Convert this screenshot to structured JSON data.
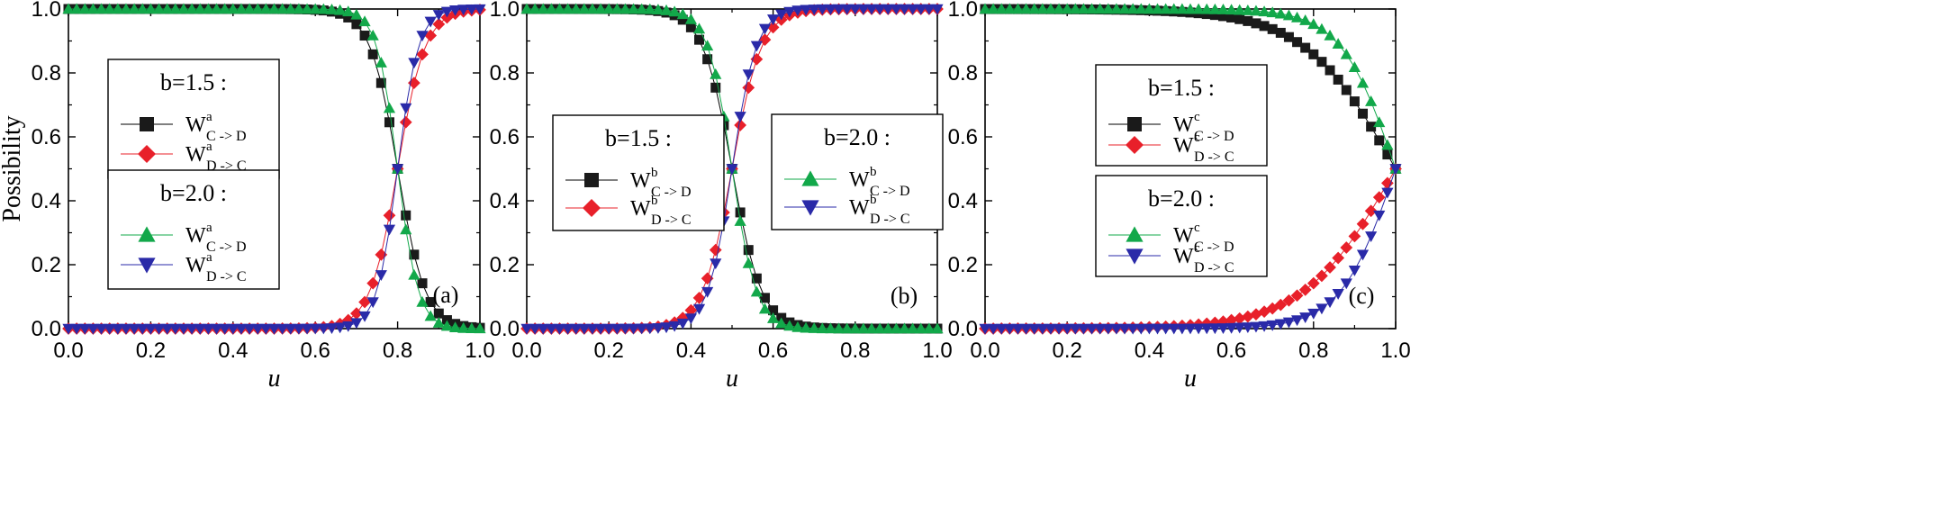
{
  "chart_data": [
    {
      "type": "line",
      "panel_label": "(a)",
      "xlabel": "u",
      "ylabel": "Possibility",
      "xlim": [
        0,
        1
      ],
      "ylim": [
        0,
        1
      ],
      "xticks": [
        "0.0",
        "0.2",
        "0.4",
        "0.6",
        "0.8",
        "1.0"
      ],
      "yticks": [
        "0.0",
        "0.2",
        "0.4",
        "0.6",
        "0.8",
        "1.0"
      ],
      "grid": false,
      "legend": [
        {
          "title": "b=1.5 :",
          "position": "middle-left",
          "entries": [
            {
              "series": 0,
              "main": "W",
              "sup": "a",
              "sub": "C -> D"
            },
            {
              "series": 1,
              "main": "W",
              "sup": "a",
              "sub": "D -> C"
            }
          ]
        },
        {
          "title": "b=2.0 :",
          "position": "lower-left",
          "entries": [
            {
              "series": 2,
              "main": "W",
              "sup": "a",
              "sub": "C -> D"
            },
            {
              "series": 3,
              "main": "W",
              "sup": "a",
              "sub": "D -> C"
            }
          ]
        }
      ],
      "series": [
        {
          "b": 1.5,
          "marker": "square",
          "color": "#1a1a1a",
          "line_color": "#000000",
          "center": 0.8,
          "steep": 30,
          "decreasing": true
        },
        {
          "b": 1.5,
          "marker": "diamond",
          "color": "#e8202a",
          "line_color": "#e8202a",
          "center": 0.8,
          "steep": 30,
          "decreasing": false
        },
        {
          "b": 2.0,
          "marker": "triangle-up",
          "color": "#12a84a",
          "line_color": "#12a84a",
          "center": 0.8,
          "steep": 40,
          "decreasing": true
        },
        {
          "b": 2.0,
          "marker": "triangle-down",
          "color": "#2a2aa8",
          "line_color": "#2a2aa8",
          "center": 0.8,
          "steep": 40,
          "decreasing": false
        }
      ]
    },
    {
      "type": "line",
      "panel_label": "(b)",
      "xlabel": "u",
      "ylabel": "",
      "xlim": [
        0,
        1
      ],
      "ylim": [
        0,
        1
      ],
      "xticks": [
        "0.0",
        "0.2",
        "0.4",
        "0.6",
        "0.8",
        "1.0"
      ],
      "yticks": [
        "0.0",
        "0.2",
        "0.4",
        "0.6",
        "0.8",
        "1.0"
      ],
      "grid": false,
      "legend": [
        {
          "title": "b=1.5 :",
          "position": "middle-left",
          "entries": [
            {
              "series": 0,
              "main": "W",
              "sup": "b",
              "sub": "C -> D"
            },
            {
              "series": 1,
              "main": "W",
              "sup": "b",
              "sub": "D -> C"
            }
          ]
        },
        {
          "title": "b=2.0 :",
          "position": "middle-right",
          "entries": [
            {
              "series": 2,
              "main": "W",
              "sup": "b",
              "sub": "C -> D"
            },
            {
              "series": 3,
              "main": "W",
              "sup": "b",
              "sub": "D -> C"
            }
          ]
        }
      ],
      "series": [
        {
          "b": 1.5,
          "marker": "square",
          "color": "#1a1a1a",
          "line_color": "#000000",
          "center": 0.5,
          "steep": 28,
          "decreasing": true
        },
        {
          "b": 1.5,
          "marker": "diamond",
          "color": "#e8202a",
          "line_color": "#e8202a",
          "center": 0.5,
          "steep": 28,
          "decreasing": false
        },
        {
          "b": 2.0,
          "marker": "triangle-up",
          "color": "#12a84a",
          "line_color": "#12a84a",
          "center": 0.5,
          "steep": 34,
          "decreasing": true
        },
        {
          "b": 2.0,
          "marker": "triangle-down",
          "color": "#2a2aa8",
          "line_color": "#2a2aa8",
          "center": 0.5,
          "steep": 34,
          "decreasing": false
        }
      ]
    },
    {
      "type": "line",
      "panel_label": "(c)",
      "xlabel": "u",
      "ylabel": "",
      "xlim": [
        0,
        1
      ],
      "ylim": [
        0,
        1
      ],
      "xticks": [
        "0.0",
        "0.2",
        "0.4",
        "0.6",
        "0.8",
        "1.0"
      ],
      "yticks": [
        "0.0",
        "0.2",
        "0.4",
        "0.6",
        "0.8",
        "1.0"
      ],
      "grid": false,
      "legend": [
        {
          "title": "b=1.5 :",
          "position": "upper-left",
          "entries": [
            {
              "series": 0,
              "main": "W",
              "sup": "c",
              "sub": "C -> D"
            },
            {
              "series": 1,
              "main": "W",
              "sup": "c",
              "sub": "D -> C"
            }
          ]
        },
        {
          "title": "b=2.0 :",
          "position": "middle-left",
          "entries": [
            {
              "series": 2,
              "main": "W",
              "sup": "c",
              "sub": "C -> D"
            },
            {
              "series": 3,
              "main": "W",
              "sup": "c",
              "sub": "D -> C"
            }
          ]
        }
      ],
      "series": [
        {
          "b": 1.5,
          "marker": "square",
          "color": "#1a1a1a",
          "line_color": "#000000",
          "center": 1.0,
          "steep": 9,
          "decreasing": true
        },
        {
          "b": 1.5,
          "marker": "diamond",
          "color": "#e8202a",
          "line_color": "#e8202a",
          "center": 1.0,
          "steep": 9,
          "decreasing": false
        },
        {
          "b": 2.0,
          "marker": "triangle-up",
          "color": "#12a84a",
          "line_color": "#12a84a",
          "center": 1.0,
          "steep": 15,
          "decreasing": true
        },
        {
          "b": 2.0,
          "marker": "triangle-down",
          "color": "#2a2aa8",
          "line_color": "#2a2aa8",
          "center": 1.0,
          "steep": 15,
          "decreasing": false
        }
      ]
    }
  ]
}
